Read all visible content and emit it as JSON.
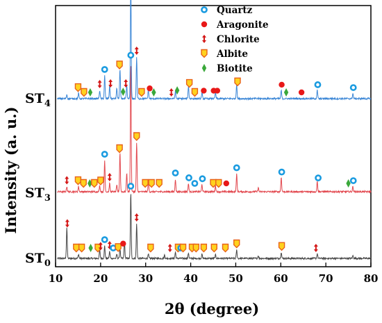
{
  "chart_data": {
    "type": "line",
    "title": "",
    "xlabel": "2θ (degree)",
    "ylabel": "Intensity (a. u.)",
    "xlim": [
      10,
      80
    ],
    "x_ticks": [
      "10",
      "20",
      "30",
      "40",
      "50",
      "60",
      "70",
      "80"
    ],
    "y_ticks_shown": false,
    "legend_position": "top-center",
    "legend": [
      {
        "name": "Quartz",
        "color": "#1a9be0",
        "marker": "ring-icon"
      },
      {
        "name": "Aragonite",
        "color": "#e81818",
        "marker": "dot-icon"
      },
      {
        "name": "Chlorite",
        "color": "#d31515",
        "marker": "double-arrow-icon"
      },
      {
        "name": "Albite",
        "color": "#f5a020",
        "marker": "shield-icon"
      },
      {
        "name": "Biotite",
        "color": "#3aa83a",
        "marker": "diamond-icon"
      }
    ],
    "series": [
      {
        "label": "ST0",
        "label_main": "ST",
        "label_sub": "0",
        "color": "#454545",
        "baseline": 0,
        "peak_scale": 1.0,
        "peaks": [
          [
            12.5,
            45
          ],
          [
            15.1,
            6
          ],
          [
            19.8,
            12
          ],
          [
            20.9,
            18
          ],
          [
            22.0,
            10
          ],
          [
            23.6,
            6
          ],
          [
            24.3,
            14
          ],
          [
            25.3,
            25
          ],
          [
            26.7,
            95
          ],
          [
            28.0,
            50
          ],
          [
            30.6,
            6
          ],
          [
            34.2,
            5
          ],
          [
            36.6,
            9
          ],
          [
            39.5,
            8
          ],
          [
            42.5,
            6
          ],
          [
            45.5,
            5
          ],
          [
            50.2,
            12
          ],
          [
            55.0,
            4
          ],
          [
            60.1,
            9
          ],
          [
            68.1,
            7
          ],
          [
            76.0,
            4
          ]
        ]
      },
      {
        "label": "ST3",
        "label_main": "ST",
        "label_sub": "3",
        "color": "#e2474e",
        "baseline": 96,
        "peak_scale": 1.5,
        "peaks": [
          [
            12.5,
            5
          ],
          [
            15.1,
            5
          ],
          [
            19.8,
            6
          ],
          [
            20.9,
            30
          ],
          [
            22.0,
            8
          ],
          [
            23.6,
            6
          ],
          [
            24.3,
            38
          ],
          [
            25.8,
            18
          ],
          [
            26.7,
            125
          ],
          [
            28.0,
            47
          ],
          [
            30.6,
            10
          ],
          [
            36.6,
            12
          ],
          [
            39.5,
            8
          ],
          [
            42.5,
            7
          ],
          [
            45.5,
            6
          ],
          [
            50.2,
            17
          ],
          [
            55.0,
            4
          ],
          [
            60.1,
            14
          ],
          [
            68.1,
            10
          ],
          [
            76.0,
            5
          ]
        ]
      },
      {
        "label": "ST4",
        "label_main": "ST",
        "label_sub": "4",
        "color": "#3b86d6",
        "baseline": 230,
        "peak_scale": 1.5,
        "peaks": [
          [
            12.5,
            4
          ],
          [
            15.1,
            5
          ],
          [
            19.8,
            8
          ],
          [
            20.9,
            22
          ],
          [
            22.0,
            12
          ],
          [
            23.6,
            10
          ],
          [
            24.3,
            28
          ],
          [
            25.8,
            12
          ],
          [
            26.7,
            115
          ],
          [
            28.0,
            40
          ],
          [
            30.6,
            8
          ],
          [
            36.6,
            7
          ],
          [
            39.5,
            12
          ],
          [
            42.5,
            6
          ],
          [
            45.5,
            6
          ],
          [
            50.2,
            14
          ],
          [
            60.1,
            8
          ],
          [
            68.1,
            8
          ],
          [
            76.0,
            5
          ]
        ]
      }
    ],
    "phase_markers": {
      "ST0": [
        {
          "x": 12.6,
          "phase": "Chlorite"
        },
        {
          "x": 14.6,
          "phase": "Albite"
        },
        {
          "x": 15.8,
          "phase": "Albite"
        },
        {
          "x": 17.8,
          "phase": "Biotite"
        },
        {
          "x": 19.4,
          "phase": "Albite"
        },
        {
          "x": 20.0,
          "phase": "Chlorite"
        },
        {
          "x": 20.9,
          "phase": "Quartz"
        },
        {
          "x": 22.0,
          "phase": "Chlorite"
        },
        {
          "x": 22.8,
          "phase": "Quartz"
        },
        {
          "x": 23.9,
          "phase": "Albite"
        },
        {
          "x": 25.0,
          "phase": "Aragonite"
        },
        {
          "x": 26.7,
          "phase": "Quartz"
        },
        {
          "x": 28.0,
          "phase": "Chlorite"
        },
        {
          "x": 31.1,
          "phase": "Albite"
        },
        {
          "x": 35.4,
          "phase": "Chlorite"
        },
        {
          "x": 37.2,
          "phase": "Albite"
        },
        {
          "x": 37.8,
          "phase": "Quartz"
        },
        {
          "x": 38.3,
          "phase": "Albite"
        },
        {
          "x": 40.3,
          "phase": "Albite"
        },
        {
          "x": 41.2,
          "phase": "Albite"
        },
        {
          "x": 42.9,
          "phase": "Albite"
        },
        {
          "x": 45.2,
          "phase": "Albite"
        },
        {
          "x": 47.7,
          "phase": "Albite"
        },
        {
          "x": 50.2,
          "phase": "Albite"
        },
        {
          "x": 60.2,
          "phase": "Albite"
        },
        {
          "x": 67.8,
          "phase": "Chlorite"
        }
      ],
      "ST3": [
        {
          "x": 12.5,
          "phase": "Chlorite"
        },
        {
          "x": 15.0,
          "phase": "Albite"
        },
        {
          "x": 16.2,
          "phase": "Albite"
        },
        {
          "x": 17.6,
          "phase": "Biotite"
        },
        {
          "x": 18.6,
          "phase": "Albite"
        },
        {
          "x": 20.0,
          "phase": "Albite"
        },
        {
          "x": 20.9,
          "phase": "Quartz"
        },
        {
          "x": 22.0,
          "phase": "Chlorite"
        },
        {
          "x": 24.2,
          "phase": "Albite"
        },
        {
          "x": 26.7,
          "phase": "Quartz"
        },
        {
          "x": 28.0,
          "phase": "Albite"
        },
        {
          "x": 29.9,
          "phase": "Albite"
        },
        {
          "x": 31.3,
          "phase": "Albite"
        },
        {
          "x": 33.0,
          "phase": "Albite"
        },
        {
          "x": 36.6,
          "phase": "Quartz"
        },
        {
          "x": 39.6,
          "phase": "Quartz"
        },
        {
          "x": 40.9,
          "phase": "Quartz"
        },
        {
          "x": 42.6,
          "phase": "Quartz"
        },
        {
          "x": 45.0,
          "phase": "Albite"
        },
        {
          "x": 46.2,
          "phase": "Albite"
        },
        {
          "x": 47.9,
          "phase": "Aragonite"
        },
        {
          "x": 50.2,
          "phase": "Quartz"
        },
        {
          "x": 60.2,
          "phase": "Quartz"
        },
        {
          "x": 68.3,
          "phase": "Quartz"
        },
        {
          "x": 75.0,
          "phase": "Biotite"
        },
        {
          "x": 76.1,
          "phase": "Quartz"
        }
      ],
      "ST4": [
        {
          "x": 15.0,
          "phase": "Albite"
        },
        {
          "x": 16.3,
          "phase": "Albite"
        },
        {
          "x": 17.7,
          "phase": "Biotite"
        },
        {
          "x": 19.8,
          "phase": "Chlorite"
        },
        {
          "x": 20.9,
          "phase": "Quartz"
        },
        {
          "x": 22.2,
          "phase": "Chlorite"
        },
        {
          "x": 24.2,
          "phase": "Albite"
        },
        {
          "x": 25.0,
          "phase": "Biotite"
        },
        {
          "x": 25.6,
          "phase": "Chlorite"
        },
        {
          "x": 26.7,
          "phase": "Quartz"
        },
        {
          "x": 28.0,
          "phase": "Chlorite"
        },
        {
          "x": 29.1,
          "phase": "Albite"
        },
        {
          "x": 30.9,
          "phase": "Aragonite"
        },
        {
          "x": 31.8,
          "phase": "Biotite"
        },
        {
          "x": 35.7,
          "phase": "Chlorite"
        },
        {
          "x": 37.0,
          "phase": "Biotite"
        },
        {
          "x": 39.7,
          "phase": "Albite"
        },
        {
          "x": 40.9,
          "phase": "Albite"
        },
        {
          "x": 42.9,
          "phase": "Aragonite"
        },
        {
          "x": 45.1,
          "phase": "Aragonite"
        },
        {
          "x": 45.9,
          "phase": "Aragonite"
        },
        {
          "x": 50.4,
          "phase": "Albite"
        },
        {
          "x": 60.2,
          "phase": "Aragonite"
        },
        {
          "x": 61.2,
          "phase": "Biotite"
        },
        {
          "x": 64.6,
          "phase": "Aragonite"
        },
        {
          "x": 68.2,
          "phase": "Quartz"
        },
        {
          "x": 76.1,
          "phase": "Quartz"
        }
      ]
    }
  }
}
